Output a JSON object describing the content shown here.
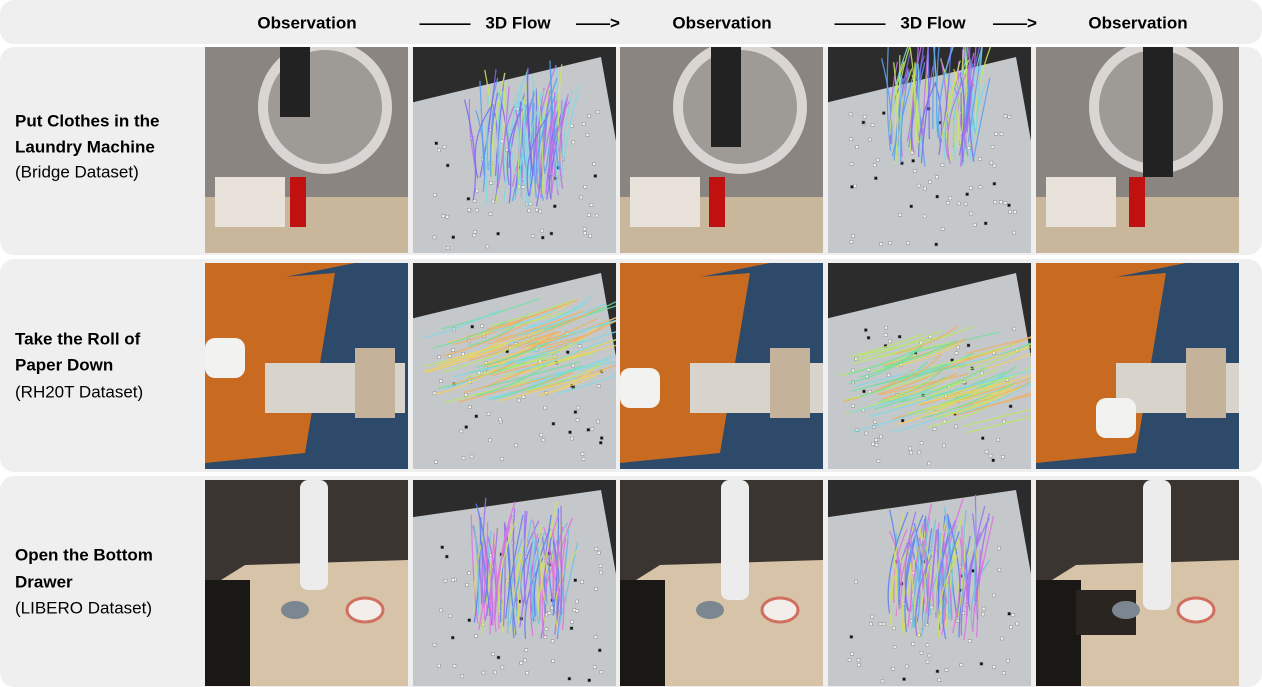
{
  "header": {
    "labels": [
      "Observation",
      "———",
      "3D Flow",
      "——>",
      "Observation",
      "———",
      "3D Flow",
      "——>",
      "Observation"
    ]
  },
  "rows": [
    {
      "title_lines": [
        "Put Clothes in the",
        "Laundry Machine"
      ],
      "dataset": "(Bridge Dataset)"
    },
    {
      "title_lines": [
        "Take the Roll of",
        "Paper Down"
      ],
      "dataset": "(RH20T Dataset)"
    },
    {
      "title_lines": [
        "Open the Bottom",
        "Drawer"
      ],
      "dataset": "(LIBERO Dataset)"
    }
  ]
}
